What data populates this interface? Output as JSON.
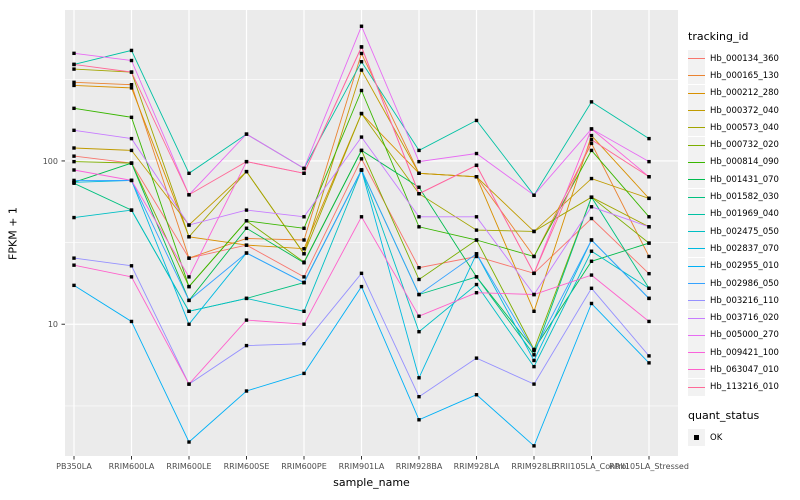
{
  "axes": {
    "x_title": "sample_name",
    "y_title": "FPKM + 1"
  },
  "legend": {
    "tracking_title": "tracking_id",
    "quant_title": "quant_status",
    "quant_items": [
      {
        "label": "OK",
        "marker": "black-square"
      }
    ]
  },
  "colors": {
    "panel_bg": "#EBEBEB",
    "grid": "#FFFFFF",
    "tick_text": "#4D4D4D",
    "tick_mark": "#333333",
    "axis_title": "#000000",
    "marker": "#000000",
    "legend_key_bg": "#F2F2F2"
  },
  "chart_data": {
    "type": "line",
    "title": "",
    "xlabel": "sample_name",
    "ylabel": "FPKM + 1",
    "y_scale": "log10",
    "ylim": [
      1.56,
      840
    ],
    "grid": true,
    "legend_position": "right",
    "marker": "black-square",
    "y_major_ticks": [
      {
        "label": "100",
        "value": 100
      },
      {
        "label": "10",
        "value": 10
      }
    ],
    "y_minor_gridlines": [
      3.162,
      31.62,
      316.2
    ],
    "x_categories": [
      "PB350LA",
      "RRIM600LA",
      "RRIM600LE",
      "RRIM600SE",
      "RRIM600PE",
      "RRIM901LA",
      "RRIM928BA",
      "RRIM928LA",
      "RRIM928LE",
      "RRII105LA_Control",
      "RRII105LA_Stressed"
    ],
    "series": [
      {
        "name": "Hb_000134_360",
        "color": "#F8766D",
        "values": [
          107,
          97,
          25.4,
          30.5,
          19.5,
          103,
          22.2,
          26,
          20.5,
          44.4,
          20.4
        ]
      },
      {
        "name": "Hb_000165_130",
        "color": "#EA8331",
        "values": [
          303,
          293,
          25.4,
          33.5,
          32.8,
          455,
          84,
          80,
          26,
          128,
          26
        ]
      },
      {
        "name": "Hb_000212_280",
        "color": "#D89000",
        "values": [
          290,
          280,
          34.3,
          30.5,
          29,
          195,
          84,
          80,
          12,
          143,
          59
        ]
      },
      {
        "name": "Hb_000372_040",
        "color": "#C09B00",
        "values": [
          120,
          116,
          40.5,
          86,
          27,
          360,
          84,
          80,
          37,
          78,
          59
        ]
      },
      {
        "name": "Hb_000573_040",
        "color": "#A3A500",
        "values": [
          365,
          350,
          34.3,
          86,
          27,
          195,
          63,
          37.7,
          37,
          60,
          39.5
        ]
      },
      {
        "name": "Hb_000732_020",
        "color": "#7CAE00",
        "values": [
          99,
          97,
          17,
          43,
          24,
          116,
          18.8,
          32.8,
          7,
          60,
          31.4
        ]
      },
      {
        "name": "Hb_000814_090",
        "color": "#39B600",
        "values": [
          210,
          185,
          17,
          43,
          38.7,
          270,
          39.5,
          32.8,
          26,
          116,
          45.5
        ]
      },
      {
        "name": "Hb_001431_070",
        "color": "#00BB4E",
        "values": [
          74,
          97,
          14,
          38.7,
          23.8,
          116,
          69,
          19.5,
          7,
          24.3,
          31.4
        ]
      },
      {
        "name": "Hb_001582_030",
        "color": "#00C07F",
        "values": [
          73,
          50,
          12,
          14.4,
          18,
          88,
          15.2,
          19.5,
          6.5,
          60,
          16.6
        ]
      },
      {
        "name": "Hb_001969_040",
        "color": "#00C1A3",
        "values": [
          390,
          475,
          84,
          146,
          90,
          405,
          116,
          177,
          61.7,
          230,
          137
        ]
      },
      {
        "name": "Hb_002475_050",
        "color": "#00BFC4",
        "values": [
          45,
          50,
          12,
          14.4,
          12,
          88,
          9,
          17.5,
          5.5,
          28,
          16.6
        ]
      },
      {
        "name": "Hb_002837_070",
        "color": "#00BAE0",
        "values": [
          74,
          76,
          10,
          27.3,
          18,
          88,
          4.7,
          27,
          6,
          32.8,
          14.4
        ]
      },
      {
        "name": "Hb_002955_010",
        "color": "#00B0F6",
        "values": [
          17.3,
          10.4,
          1.9,
          3.9,
          5.0,
          17,
          2.6,
          3.7,
          1.8,
          13.4,
          5.8
        ]
      },
      {
        "name": "Hb_002986_050",
        "color": "#35A2FF",
        "values": [
          76,
          76,
          14,
          27.3,
          18,
          88,
          15.2,
          27,
          6.9,
          32.8,
          14.4
        ]
      },
      {
        "name": "Hb_003216_110",
        "color": "#9590FF",
        "values": [
          25.4,
          22.8,
          4.3,
          7.4,
          7.6,
          20.5,
          3.6,
          6.2,
          4.3,
          16.6,
          6.4
        ]
      },
      {
        "name": "Hb_003716_020",
        "color": "#C77CFF",
        "values": [
          154,
          137,
          40.5,
          50,
          45.5,
          140,
          45.5,
          45.5,
          15.2,
          52.4,
          39.5
        ]
      },
      {
        "name": "Hb_005000_270",
        "color": "#E76BF3",
        "values": [
          456,
          412,
          62,
          146,
          90,
          668,
          99,
          111,
          61.7,
          157,
          99
        ]
      },
      {
        "name": "Hb_009421_100",
        "color": "#FA62DB",
        "values": [
          88,
          76,
          19.5,
          99,
          84,
          499,
          63,
          94,
          20.5,
          157,
          80
        ]
      },
      {
        "name": "Hb_063047_010",
        "color": "#FF61CC",
        "values": [
          23,
          19.5,
          4.3,
          10.6,
          10,
          45.5,
          11.2,
          15.6,
          15.2,
          20,
          10.4
        ]
      },
      {
        "name": "Hb_113216_010",
        "color": "#FF6A98",
        "values": [
          390,
          350,
          62,
          99,
          84,
          499,
          63,
          94,
          20.5,
          135,
          80
        ]
      }
    ]
  }
}
